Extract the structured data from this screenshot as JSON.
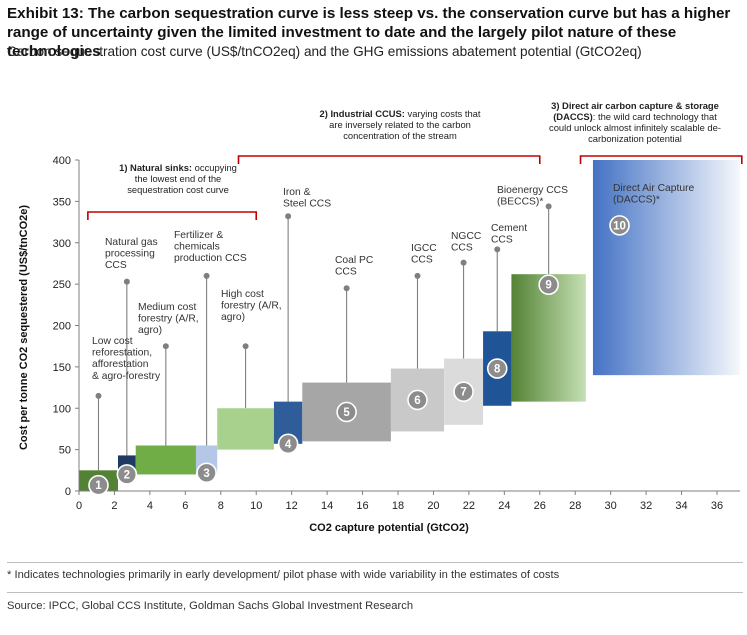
{
  "header": {
    "title": "Exhibit 13: The carbon sequestration curve is less steep vs. the conservation curve but has a higher range of uncertainty given the limited investment to date and the largely pilot nature of these technologies",
    "subtitle": "Carbon sequestration cost curve (US$/tnCO2eq) and the GHG emissions abatement potential (GtCO2eq)"
  },
  "footer": {
    "footnote": "* Indicates technologies primarily in early development/ pilot phase with wide variability in the estimates of costs",
    "source": "Source: IPCC, Global CCS Institute, Goldman Sachs Global Investment Research"
  },
  "chart_data": {
    "type": "bar",
    "variant": "cost-curve (variable-width range bars)",
    "xlabel": "CO2 capture potential (GtCO2)",
    "ylabel": "Cost per tonne CO2 sequestered (US$/tnCO2e)",
    "xlim": [
      0,
      36
    ],
    "ylim": [
      0,
      400
    ],
    "xticks": [
      "0",
      "2",
      "4",
      "6",
      "8",
      "10",
      "12",
      "14",
      "16",
      "18",
      "20",
      "22",
      "24",
      "26",
      "28",
      "30",
      "32",
      "34",
      "36"
    ],
    "yticks": [
      "0",
      "50",
      "100",
      "150",
      "200",
      "250",
      "300",
      "350",
      "400"
    ],
    "grid": false,
    "segments": [
      {
        "id": "1",
        "label_lines": [
          "Low cost",
          "reforestation,",
          "afforestation",
          "& agro-forestry"
        ],
        "x_start": 0.0,
        "x_end": 2.2,
        "cost_low": 0,
        "cost_high": 25,
        "marker_cost": 115,
        "color": "#548235"
      },
      {
        "id": "2",
        "label_lines": [
          "Natural gas",
          "processing",
          "CCS"
        ],
        "x_start": 2.2,
        "x_end": 3.2,
        "cost_low": 18,
        "cost_high": 43,
        "marker_cost": 253,
        "color": "#1f3864"
      },
      {
        "id": "",
        "label_lines": [
          "Medium cost",
          "forestry (A/R,",
          "agro)"
        ],
        "x_start": 3.2,
        "x_end": 6.6,
        "cost_low": 20,
        "cost_high": 55,
        "marker_cost": 175,
        "color": "#70ad47"
      },
      {
        "id": "3",
        "label_lines": [
          "Fertilizer &",
          "chemicals",
          "production CCS"
        ],
        "x_start": 6.6,
        "x_end": 7.8,
        "cost_low": 22,
        "cost_high": 55,
        "marker_cost": 260,
        "color": "#b4c7e7"
      },
      {
        "id": "",
        "label_lines": [
          "High cost",
          "forestry (A/R,",
          "agro)"
        ],
        "x_start": 7.8,
        "x_end": 11.0,
        "cost_low": 50,
        "cost_high": 100,
        "marker_cost": 175,
        "color": "#a9d18e"
      },
      {
        "id": "4",
        "label_lines": [
          "Iron &",
          "Steel CCS"
        ],
        "x_start": 11.0,
        "x_end": 12.6,
        "cost_low": 57,
        "cost_high": 108,
        "marker_cost": 332,
        "color": "#2e5d9a"
      },
      {
        "id": "5",
        "label_lines": [
          "Coal PC",
          "CCS"
        ],
        "x_start": 12.6,
        "x_end": 17.6,
        "cost_low": 60,
        "cost_high": 131,
        "marker_cost": 245,
        "color": "#a6a6a6"
      },
      {
        "id": "6",
        "label_lines": [
          "IGCC",
          "CCS"
        ],
        "x_start": 17.6,
        "x_end": 20.6,
        "cost_low": 72,
        "cost_high": 148,
        "marker_cost": 260,
        "color": "#c9c9c9"
      },
      {
        "id": "7",
        "label_lines": [
          "NGCC",
          "CCS"
        ],
        "x_start": 20.6,
        "x_end": 22.8,
        "cost_low": 80,
        "cost_high": 160,
        "marker_cost": 276,
        "color": "#dbdbdb"
      },
      {
        "id": "8",
        "label_lines": [
          "Cement",
          "CCS"
        ],
        "x_start": 22.8,
        "x_end": 24.4,
        "cost_low": 103,
        "cost_high": 193,
        "marker_cost": 292,
        "color": "#1f5597"
      },
      {
        "id": "9",
        "label_lines": [
          "Bioenergy CCS",
          "(BECCS)*"
        ],
        "x_start": 24.4,
        "x_end": 28.6,
        "cost_low": 108,
        "cost_high": 262,
        "marker_cost": 344,
        "color": "#70ad47"
      },
      {
        "id": "10",
        "label_lines": [
          "Direct Air Capture",
          "(DACCS)*"
        ],
        "x_start": 29.0,
        "x_end": 37.4,
        "cost_low": 140,
        "cost_high": 400,
        "marker_cost": 322,
        "color": "#4f81bd"
      }
    ],
    "groups": [
      {
        "label_lines": [
          "1) Natural sinks: occupying",
          "the lowest end of the",
          "sequestration cost curve"
        ],
        "bold_prefix": "1) Natural sinks:",
        "x_start": 0.5,
        "x_end": 10.0
      },
      {
        "label_lines": [
          "2) Industrial CCUS: varying costs that",
          "are inversely related to the carbon",
          "concentration of the stream"
        ],
        "bold_prefix": "2) Industrial CCUS:",
        "x_start": 9.0,
        "x_end": 26.0
      },
      {
        "label_lines": [
          "3) Direct air carbon capture & storage",
          "(DACCS): the wild card technology that",
          "could unlock almost infinitely scalable de-",
          "carbonization potential"
        ],
        "bold_prefix": "3) Direct air carbon capture & storage",
        "bold_line2_prefix": "(DACCS)",
        "x_start": 28.3,
        "x_end": 37.4
      }
    ]
  }
}
